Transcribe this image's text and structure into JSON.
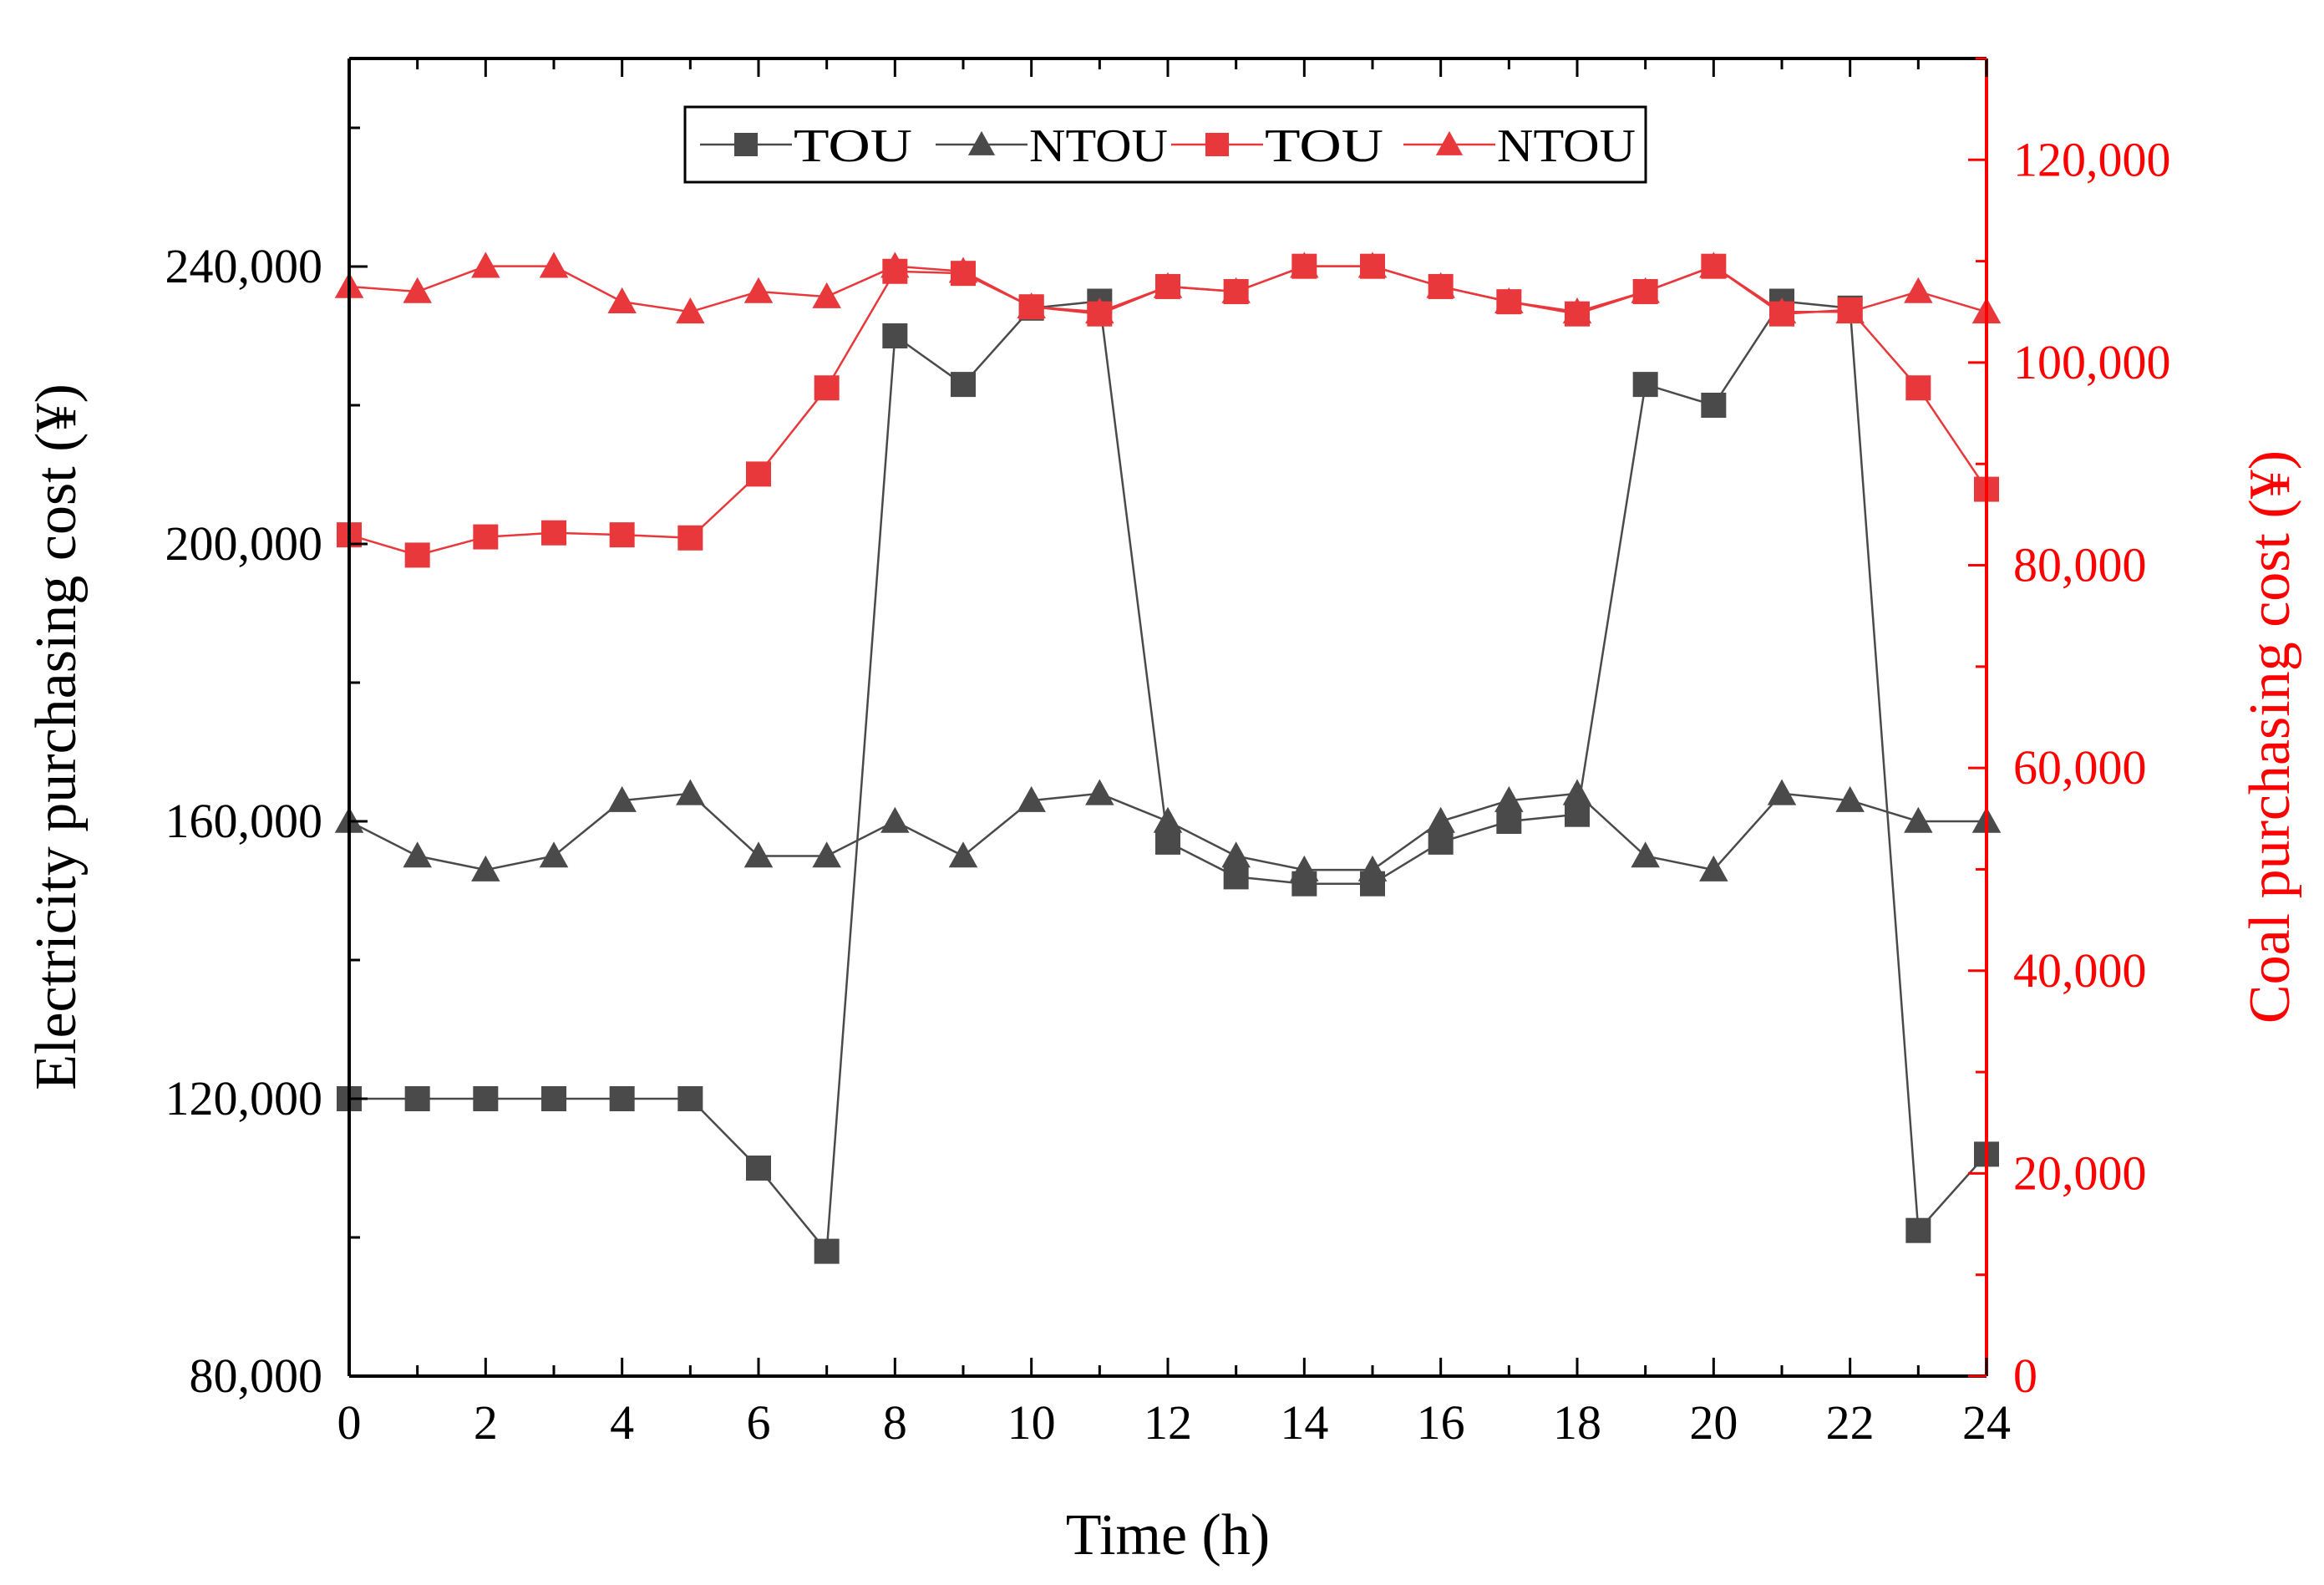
{
  "chart_data": {
    "type": "line",
    "title": "",
    "xlabel": "Time (h)",
    "ylabel_left": "Electricity purchasing cost (¥)",
    "ylabel_right": "Coal purchasing cost (¥)",
    "x_ticks": [
      0,
      2,
      4,
      6,
      8,
      10,
      12,
      14,
      16,
      18,
      20,
      22,
      24
    ],
    "x_tick_labels": [
      "0",
      "2",
      "4",
      "6",
      "8",
      "10",
      "12",
      "14",
      "16",
      "18",
      "20",
      "22",
      "24"
    ],
    "xlim": [
      0,
      24
    ],
    "ylim_left": [
      80000,
      270000
    ],
    "ylim_right": [
      0,
      130000
    ],
    "y_ticks_left": [
      80000,
      120000,
      160000,
      200000,
      240000
    ],
    "y_tick_labels_left": [
      "80,000",
      "120,000",
      "160,000",
      "200,000",
      "240,000"
    ],
    "y_ticks_right": [
      0,
      20000,
      40000,
      60000,
      80000,
      100000,
      120000
    ],
    "y_tick_labels_right": [
      "0",
      "20,000",
      "40,000",
      "60,000",
      "80,000",
      "100,000",
      "120,000"
    ],
    "grid": false,
    "legend_position": "top-center",
    "series": [
      {
        "name": "TOU",
        "axis": "left",
        "color": "#4a4a4a",
        "marker": "square",
        "x": [
          0,
          1,
          2,
          3,
          4,
          5,
          6,
          7,
          8,
          9,
          10,
          11,
          12,
          13,
          14,
          15,
          16,
          17,
          18,
          19,
          20,
          21,
          22,
          23,
          24
        ],
        "values": [
          120000,
          120000,
          120000,
          120000,
          120000,
          120000,
          110000,
          98000,
          230000,
          223000,
          234000,
          235000,
          157000,
          152000,
          151000,
          151000,
          157000,
          160000,
          161000,
          223000,
          220000,
          235000,
          234000,
          101000,
          112000
        ]
      },
      {
        "name": "NTOU",
        "axis": "left",
        "color": "#4a4a4a",
        "marker": "triangle",
        "x": [
          0,
          1,
          2,
          3,
          4,
          5,
          6,
          7,
          8,
          9,
          10,
          11,
          12,
          13,
          14,
          15,
          16,
          17,
          18,
          19,
          20,
          21,
          22,
          23,
          24
        ],
        "values": [
          160000,
          155000,
          153000,
          155000,
          163000,
          164000,
          155000,
          155000,
          160000,
          155000,
          163000,
          164000,
          160000,
          155000,
          153000,
          153000,
          160000,
          163000,
          164000,
          155000,
          153000,
          164000,
          163000,
          160000,
          160000
        ]
      },
      {
        "name": "TOU",
        "axis": "right",
        "color": "#e8383b",
        "marker": "square",
        "x": [
          0,
          1,
          2,
          3,
          4,
          5,
          6,
          7,
          8,
          9,
          10,
          11,
          12,
          13,
          14,
          15,
          16,
          17,
          18,
          19,
          20,
          21,
          22,
          23,
          24
        ],
        "values": [
          83000,
          81000,
          82800,
          83200,
          83000,
          82700,
          89000,
          97500,
          109000,
          108800,
          105500,
          104800,
          107500,
          107000,
          109500,
          109500,
          107500,
          106000,
          104800,
          107000,
          109500,
          104800,
          105200,
          97500,
          87500
        ]
      },
      {
        "name": "NTOU",
        "axis": "right",
        "color": "#e8383b",
        "marker": "triangle",
        "x": [
          0,
          1,
          2,
          3,
          4,
          5,
          6,
          7,
          8,
          9,
          10,
          11,
          12,
          13,
          14,
          15,
          16,
          17,
          18,
          19,
          20,
          21,
          22,
          23,
          24
        ],
        "values": [
          107500,
          107000,
          109500,
          109500,
          106000,
          105000,
          107000,
          106500,
          109500,
          109000,
          105500,
          105000,
          107500,
          107000,
          109500,
          109500,
          107500,
          106000,
          105000,
          107000,
          109500,
          105000,
          105000,
          107000,
          105000
        ]
      }
    ]
  }
}
